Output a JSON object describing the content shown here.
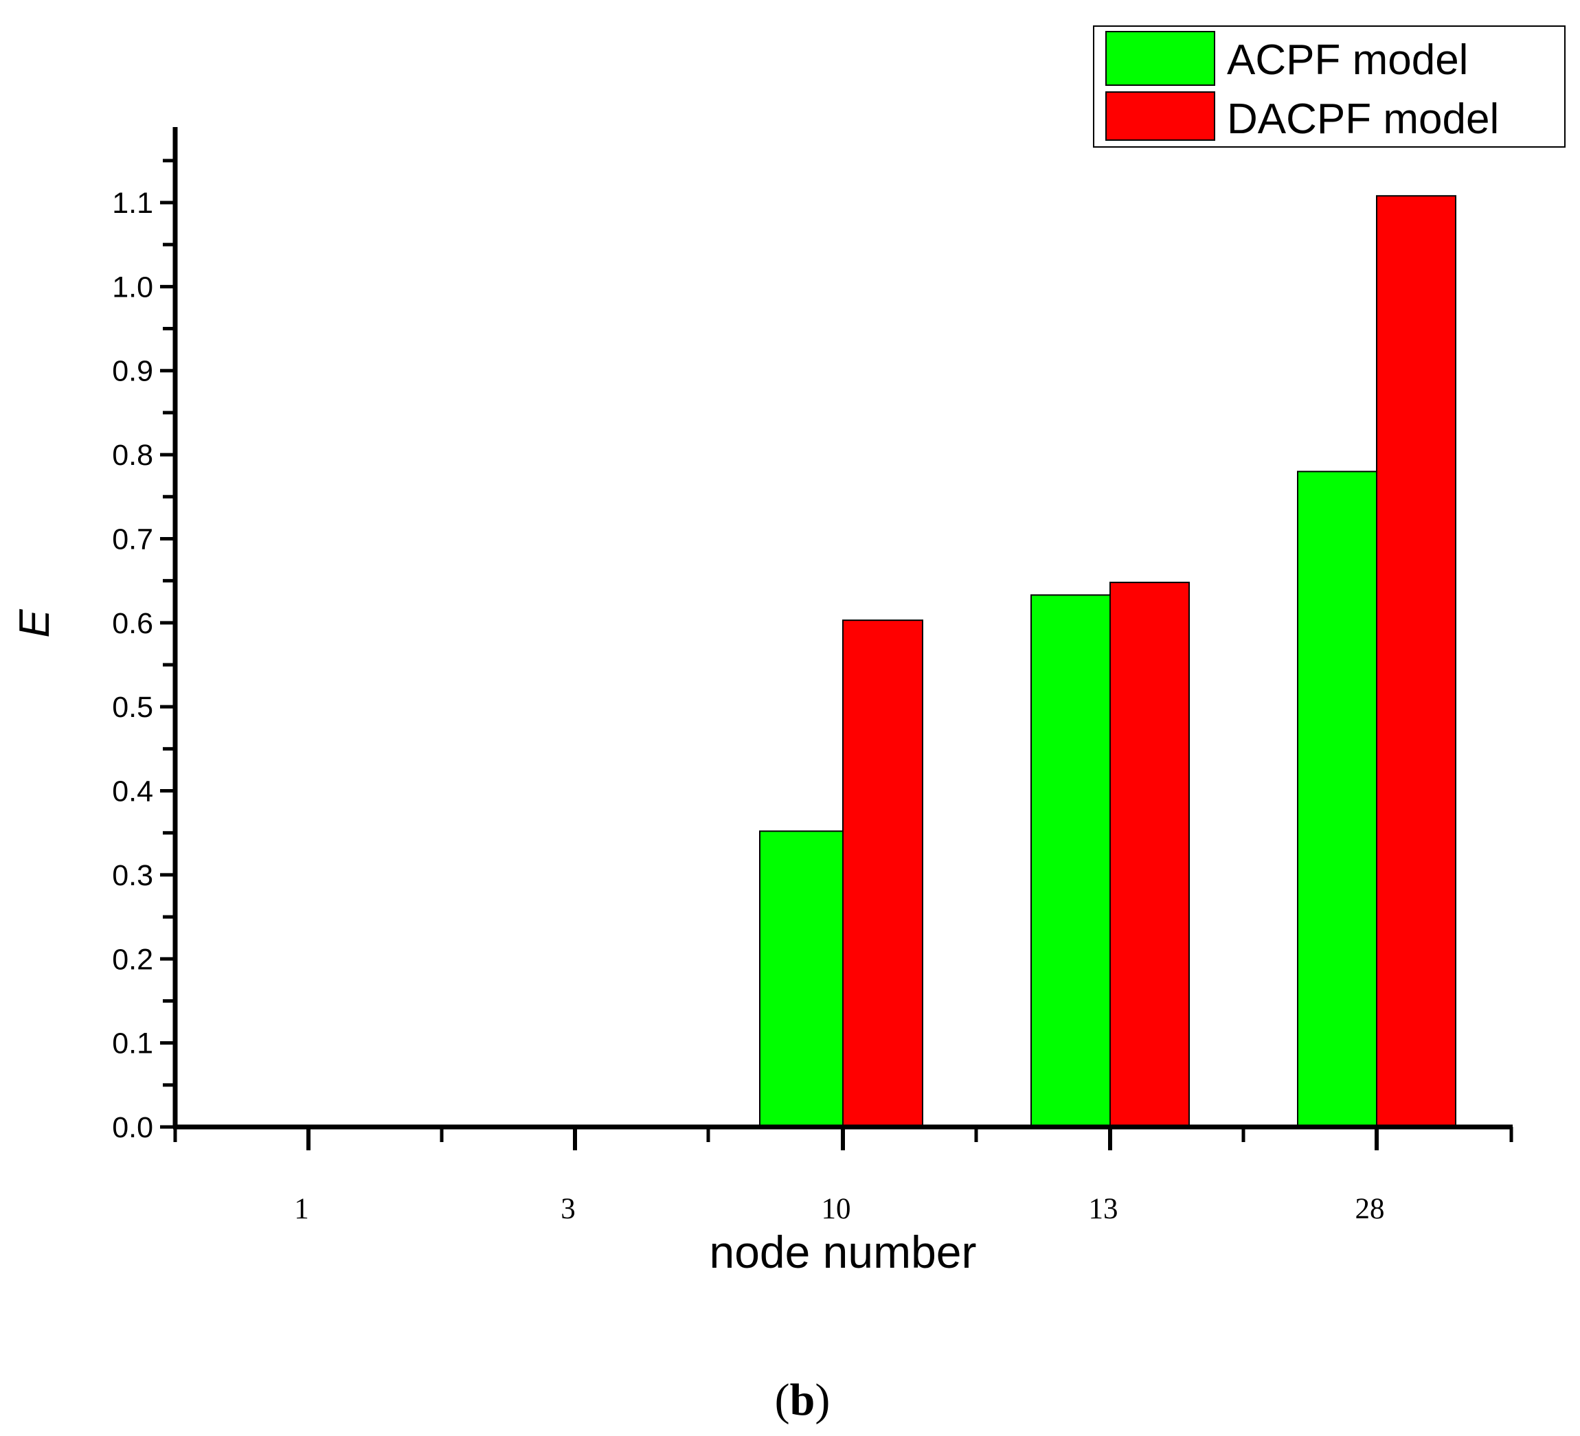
{
  "chart_data": {
    "type": "bar",
    "categories": [
      "1",
      "3",
      "10",
      "13",
      "28"
    ],
    "series": [
      {
        "name": "ACPF model",
        "color": "#00ff00",
        "values": [
          0,
          0,
          0.352,
          0.633,
          0.78
        ]
      },
      {
        "name": "DACPF model",
        "color": "#ff0000",
        "values": [
          0,
          0,
          0.603,
          0.648,
          1.108
        ]
      }
    ],
    "xlabel": "node number",
    "ylabel": "E",
    "ylim": [
      0,
      1.2
    ],
    "yticks": [
      "0.0",
      "0.1",
      "0.2",
      "0.3",
      "0.4",
      "0.5",
      "0.6",
      "0.7",
      "0.8",
      "0.9",
      "1.0",
      "1.1"
    ],
    "legend_position": "top-right",
    "grid": false
  },
  "caption": {
    "open": "(",
    "letter": "b",
    "close": ")"
  }
}
